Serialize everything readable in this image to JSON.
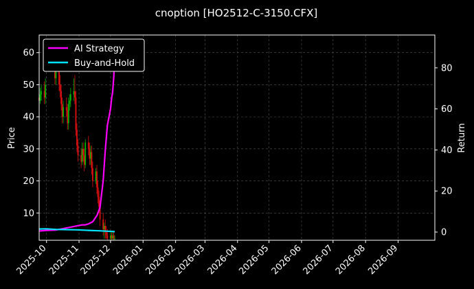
{
  "title": "cnoption [HO2512-C-3150.CFX]",
  "colors": {
    "background": "#000000",
    "grid": "#555555",
    "up_candle": "#00b400",
    "down_candle": "#e01010",
    "strategy": "#ff00ff",
    "buyhold": "#00e5ff",
    "text": "#ffffff"
  },
  "chart_data": {
    "type": "line",
    "title": "cnoption [HO2512-C-3150.CFX]",
    "y_left_label": "Price",
    "y_right_label": "Return",
    "x_range": [
      "2025-09-24",
      "2026-10-06"
    ],
    "y_left_range": [
      1.5,
      65.5
    ],
    "y_right_range": [
      -4,
      96
    ],
    "x_ticks": [
      "2025-10",
      "2025-11",
      "2025-12",
      "2026-01",
      "2026-02",
      "2026-03",
      "2026-04",
      "2026-05",
      "2026-06",
      "2026-07",
      "2026-08",
      "2026-09"
    ],
    "x_tick_dates": [
      "2025-10-01",
      "2025-11-01",
      "2025-12-01",
      "2026-01-01",
      "2026-02-01",
      "2026-03-01",
      "2026-04-01",
      "2026-05-01",
      "2026-06-01",
      "2026-07-01",
      "2026-08-01",
      "2026-09-01"
    ],
    "y_left_ticks": [
      10,
      20,
      30,
      40,
      50,
      60
    ],
    "y_right_ticks": [
      0,
      20,
      40,
      60,
      80
    ],
    "grid": true,
    "legend": {
      "position": "top-left",
      "entries": [
        "AI Strategy",
        "Buy-and-Hold"
      ]
    },
    "candles": {
      "dates": [
        "2025-09-24",
        "2025-09-25",
        "2025-09-26",
        "2025-09-29",
        "2025-09-30",
        "2025-10-09",
        "2025-10-10",
        "2025-10-13",
        "2025-10-14",
        "2025-10-15",
        "2025-10-16",
        "2025-10-17",
        "2025-10-20",
        "2025-10-21",
        "2025-10-22",
        "2025-10-23",
        "2025-10-24",
        "2025-10-27",
        "2025-10-28",
        "2025-10-29",
        "2025-10-30",
        "2025-10-31",
        "2025-11-03",
        "2025-11-04",
        "2025-11-05",
        "2025-11-06",
        "2025-11-07",
        "2025-11-10",
        "2025-11-11",
        "2025-11-12",
        "2025-11-13",
        "2025-11-14",
        "2025-11-17",
        "2025-11-18",
        "2025-11-19",
        "2025-11-20",
        "2025-11-21",
        "2025-11-24",
        "2025-11-25",
        "2025-11-26",
        "2025-11-27",
        "2025-11-28",
        "2025-12-01",
        "2025-12-02",
        "2025-12-03",
        "2025-12-04",
        "2025-12-05"
      ],
      "open": [
        46,
        45,
        47,
        48,
        46,
        55,
        52,
        54,
        50,
        48,
        44,
        40,
        43,
        42,
        38,
        44,
        45,
        47,
        48,
        46,
        36,
        31,
        28,
        26,
        30,
        28,
        25,
        32,
        30,
        27,
        29,
        24,
        20,
        23,
        18,
        15,
        12,
        8,
        5,
        6,
        4,
        3,
        2,
        3,
        2,
        3,
        2
      ],
      "close": [
        45,
        47,
        48,
        46,
        50,
        52,
        54,
        50,
        48,
        44,
        40,
        43,
        42,
        38,
        44,
        45,
        47,
        48,
        46,
        36,
        31,
        28,
        26,
        30,
        28,
        25,
        32,
        30,
        27,
        29,
        24,
        20,
        23,
        18,
        15,
        12,
        8,
        5,
        6,
        4,
        3,
        2,
        3,
        2,
        3,
        2,
        2
      ],
      "high": [
        48,
        49,
        50,
        51,
        52,
        58,
        56,
        57,
        53,
        50,
        46,
        45,
        46,
        44,
        46,
        47,
        49,
        52,
        53,
        48,
        38,
        33,
        30,
        32,
        32,
        30,
        33,
        34,
        32,
        31,
        31,
        26,
        24,
        25,
        20,
        17,
        14,
        10,
        7,
        8,
        6,
        5,
        4,
        4,
        4,
        4,
        3
      ],
      "low": [
        43,
        44,
        45,
        44,
        44,
        50,
        50,
        48,
        46,
        42,
        38,
        38,
        40,
        36,
        36,
        42,
        43,
        45,
        44,
        34,
        29,
        26,
        24,
        25,
        26,
        23,
        24,
        28,
        25,
        25,
        22,
        18,
        19,
        16,
        13,
        10,
        6,
        3,
        2,
        2,
        2,
        1.6,
        1.6,
        1.6,
        1.6,
        1.6,
        1.6
      ]
    },
    "series": [
      {
        "name": "AI Strategy",
        "x": [
          "2025-09-24",
          "2025-10-01",
          "2025-10-10",
          "2025-10-15",
          "2025-10-20",
          "2025-10-25",
          "2025-10-30",
          "2025-11-04",
          "2025-11-07",
          "2025-11-10",
          "2025-11-14",
          "2025-11-18",
          "2025-11-21",
          "2025-11-24",
          "2025-11-26",
          "2025-11-28",
          "2025-12-01",
          "2025-12-02",
          "2025-12-03",
          "2025-12-04",
          "2025-12-05"
        ],
        "values": [
          0.5,
          0.8,
          1.0,
          1.5,
          2.0,
          2.5,
          3.0,
          3.5,
          3.5,
          4.0,
          5.0,
          8.0,
          12.0,
          25.0,
          40.0,
          52.0,
          60.0,
          65.0,
          68.0,
          75.0,
          85.0
        ]
      },
      {
        "name": "Buy-and-Hold",
        "x": [
          "2025-09-24",
          "2025-10-01",
          "2025-10-10",
          "2025-10-20",
          "2025-10-30",
          "2025-11-10",
          "2025-11-20",
          "2025-11-28",
          "2025-12-05"
        ],
        "values": [
          1.5,
          1.6,
          1.3,
          1.2,
          1.1,
          0.8,
          0.6,
          0.4,
          0.2
        ]
      }
    ]
  }
}
